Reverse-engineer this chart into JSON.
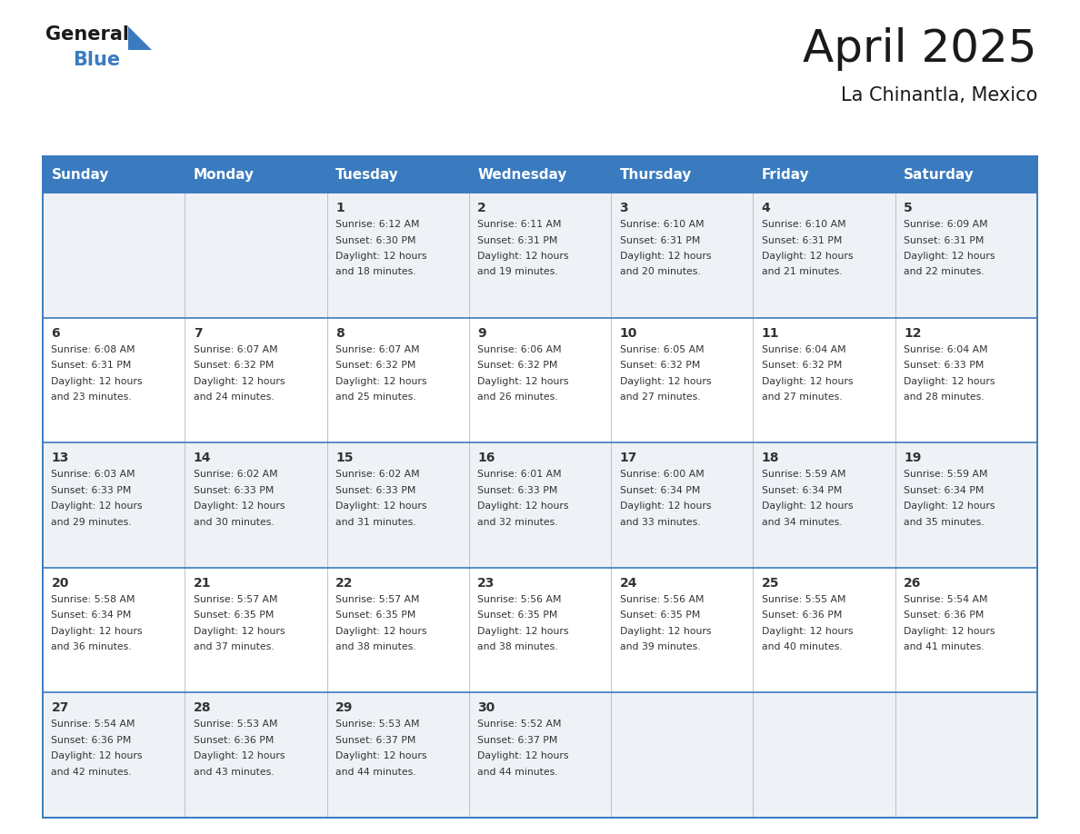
{
  "title": "April 2025",
  "subtitle": "La Chinantla, Mexico",
  "days_of_week": [
    "Sunday",
    "Monday",
    "Tuesday",
    "Wednesday",
    "Thursday",
    "Friday",
    "Saturday"
  ],
  "header_bg_color": "#3a7bbf",
  "header_text_color": "#ffffff",
  "cell_bg_even": "#eef2f7",
  "cell_bg_odd": "#ffffff",
  "border_color": "#3a7bbf",
  "sep_color": "#3a7bbf",
  "text_color": "#333333",
  "title_color": "#1a1a1a",
  "subtitle_color": "#1a1a1a",
  "logo_general_color": "#1a1a1a",
  "logo_blue_color": "#3a7bbf",
  "logo_triangle_color": "#3a7bbf",
  "calendar": [
    [
      {
        "day": "",
        "sunrise": "",
        "sunset": "",
        "daylight_min": ""
      },
      {
        "day": "",
        "sunrise": "",
        "sunset": "",
        "daylight_min": ""
      },
      {
        "day": "1",
        "sunrise": "6:12 AM",
        "sunset": "6:30 PM",
        "daylight_min": "18"
      },
      {
        "day": "2",
        "sunrise": "6:11 AM",
        "sunset": "6:31 PM",
        "daylight_min": "19"
      },
      {
        "day": "3",
        "sunrise": "6:10 AM",
        "sunset": "6:31 PM",
        "daylight_min": "20"
      },
      {
        "day": "4",
        "sunrise": "6:10 AM",
        "sunset": "6:31 PM",
        "daylight_min": "21"
      },
      {
        "day": "5",
        "sunrise": "6:09 AM",
        "sunset": "6:31 PM",
        "daylight_min": "22"
      }
    ],
    [
      {
        "day": "6",
        "sunrise": "6:08 AM",
        "sunset": "6:31 PM",
        "daylight_min": "23"
      },
      {
        "day": "7",
        "sunrise": "6:07 AM",
        "sunset": "6:32 PM",
        "daylight_min": "24"
      },
      {
        "day": "8",
        "sunrise": "6:07 AM",
        "sunset": "6:32 PM",
        "daylight_min": "25"
      },
      {
        "day": "9",
        "sunrise": "6:06 AM",
        "sunset": "6:32 PM",
        "daylight_min": "26"
      },
      {
        "day": "10",
        "sunrise": "6:05 AM",
        "sunset": "6:32 PM",
        "daylight_min": "27"
      },
      {
        "day": "11",
        "sunrise": "6:04 AM",
        "sunset": "6:32 PM",
        "daylight_min": "27"
      },
      {
        "day": "12",
        "sunrise": "6:04 AM",
        "sunset": "6:33 PM",
        "daylight_min": "28"
      }
    ],
    [
      {
        "day": "13",
        "sunrise": "6:03 AM",
        "sunset": "6:33 PM",
        "daylight_min": "29"
      },
      {
        "day": "14",
        "sunrise": "6:02 AM",
        "sunset": "6:33 PM",
        "daylight_min": "30"
      },
      {
        "day": "15",
        "sunrise": "6:02 AM",
        "sunset": "6:33 PM",
        "daylight_min": "31"
      },
      {
        "day": "16",
        "sunrise": "6:01 AM",
        "sunset": "6:33 PM",
        "daylight_min": "32"
      },
      {
        "day": "17",
        "sunrise": "6:00 AM",
        "sunset": "6:34 PM",
        "daylight_min": "33"
      },
      {
        "day": "18",
        "sunrise": "5:59 AM",
        "sunset": "6:34 PM",
        "daylight_min": "34"
      },
      {
        "day": "19",
        "sunrise": "5:59 AM",
        "sunset": "6:34 PM",
        "daylight_min": "35"
      }
    ],
    [
      {
        "day": "20",
        "sunrise": "5:58 AM",
        "sunset": "6:34 PM",
        "daylight_min": "36"
      },
      {
        "day": "21",
        "sunrise": "5:57 AM",
        "sunset": "6:35 PM",
        "daylight_min": "37"
      },
      {
        "day": "22",
        "sunrise": "5:57 AM",
        "sunset": "6:35 PM",
        "daylight_min": "38"
      },
      {
        "day": "23",
        "sunrise": "5:56 AM",
        "sunset": "6:35 PM",
        "daylight_min": "38"
      },
      {
        "day": "24",
        "sunrise": "5:56 AM",
        "sunset": "6:35 PM",
        "daylight_min": "39"
      },
      {
        "day": "25",
        "sunrise": "5:55 AM",
        "sunset": "6:36 PM",
        "daylight_min": "40"
      },
      {
        "day": "26",
        "sunrise": "5:54 AM",
        "sunset": "6:36 PM",
        "daylight_min": "41"
      }
    ],
    [
      {
        "day": "27",
        "sunrise": "5:54 AM",
        "sunset": "6:36 PM",
        "daylight_min": "42"
      },
      {
        "day": "28",
        "sunrise": "5:53 AM",
        "sunset": "6:36 PM",
        "daylight_min": "43"
      },
      {
        "day": "29",
        "sunrise": "5:53 AM",
        "sunset": "6:37 PM",
        "daylight_min": "44"
      },
      {
        "day": "30",
        "sunrise": "5:52 AM",
        "sunset": "6:37 PM",
        "daylight_min": "44"
      },
      {
        "day": "",
        "sunrise": "",
        "sunset": "",
        "daylight_min": ""
      },
      {
        "day": "",
        "sunrise": "",
        "sunset": "",
        "daylight_min": ""
      },
      {
        "day": "",
        "sunrise": "",
        "sunset": "",
        "daylight_min": ""
      }
    ]
  ],
  "fig_width": 11.88,
  "fig_height": 9.18
}
